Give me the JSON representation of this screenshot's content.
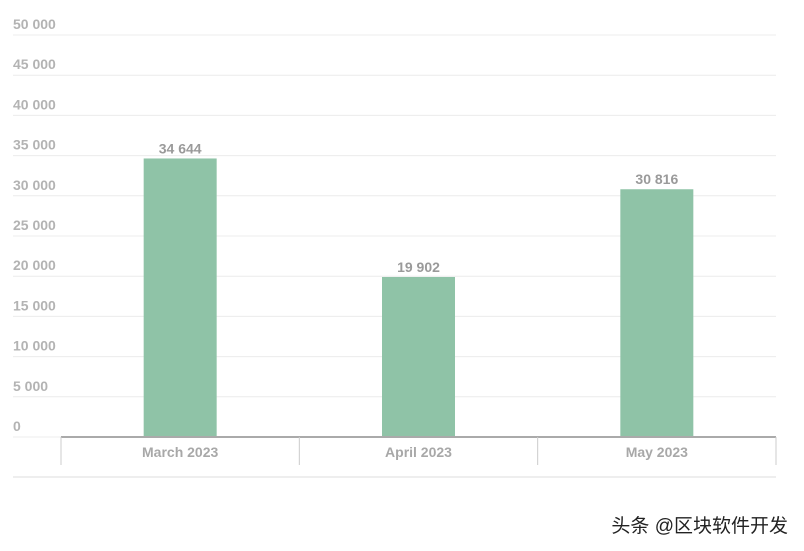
{
  "chart_data": {
    "type": "bar",
    "categories": [
      "March 2023",
      "April 2023",
      "May 2023"
    ],
    "values": [
      34644,
      19902,
      30816
    ],
    "value_labels": [
      "34 644",
      "19 902",
      "30 816"
    ],
    "color": "#8fc3a7",
    "ylim": [
      0,
      50000
    ],
    "yticks": [
      {
        "value": 0,
        "label": "0"
      },
      {
        "value": 5000,
        "label": "5 000"
      },
      {
        "value": 10000,
        "label": "10 000"
      },
      {
        "value": 15000,
        "label": "15 000"
      },
      {
        "value": 20000,
        "label": "20 000"
      },
      {
        "value": 25000,
        "label": "25 000"
      },
      {
        "value": 30000,
        "label": "30 000"
      },
      {
        "value": 35000,
        "label": "35 000"
      },
      {
        "value": 40000,
        "label": "40 000"
      },
      {
        "value": 45000,
        "label": "45 000"
      },
      {
        "value": 50000,
        "label": "50 000"
      }
    ],
    "grid": true
  },
  "watermark": "头条 @区块软件开发"
}
